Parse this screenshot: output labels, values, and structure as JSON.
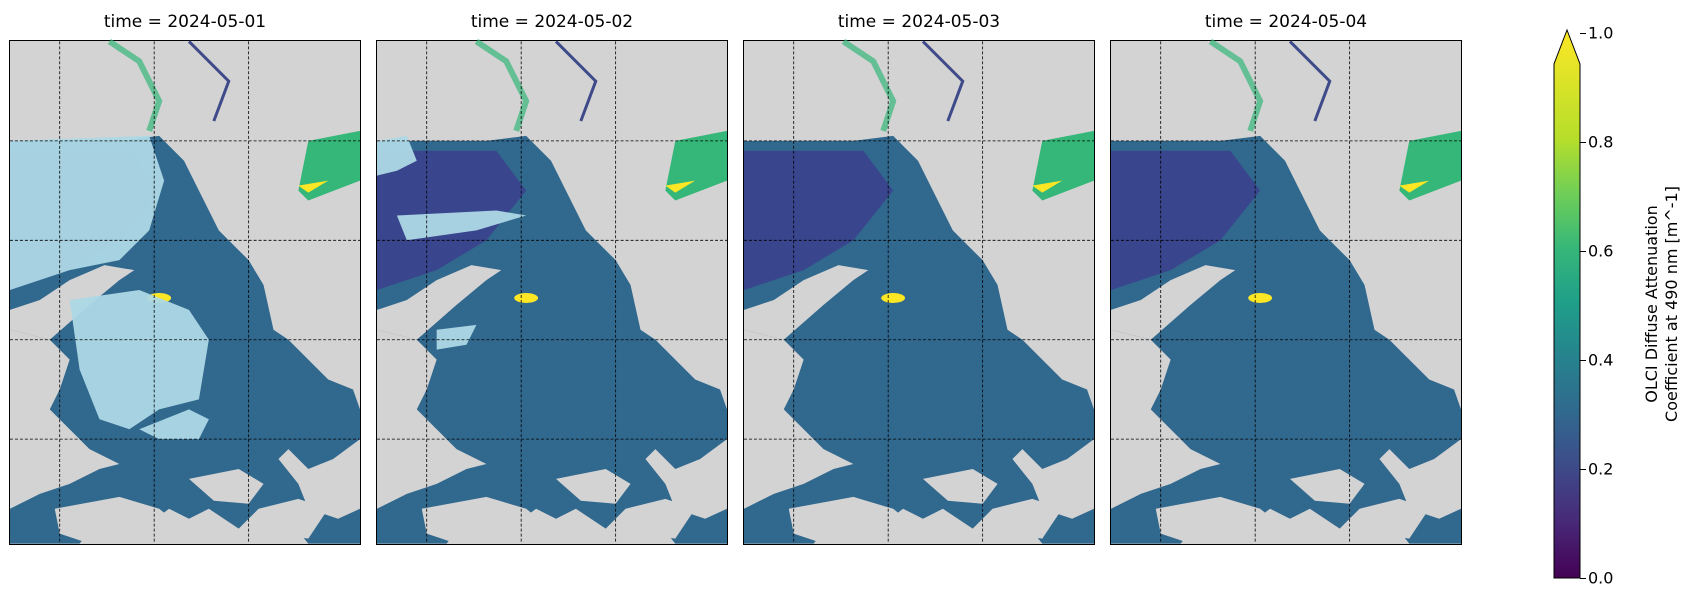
{
  "panels": [
    {
      "title": "time = 2024-05-01",
      "clouds": true
    },
    {
      "title": "time = 2024-05-02",
      "clouds": true
    },
    {
      "title": "time = 2024-05-03",
      "clouds": false
    },
    {
      "title": "time = 2024-05-04",
      "clouds": false
    }
  ],
  "colorbar": {
    "label_line1": "OLCI Diffuse Attenuation",
    "label_line2": "Coefficient at 490 nm [m^-1]",
    "ticks": [
      "0.0",
      "0.2",
      "0.4",
      "0.6",
      "0.8",
      "1.0"
    ],
    "range": [
      0.0,
      1.0
    ],
    "extend": "max",
    "colormap": "viridis"
  },
  "colors": {
    "land": "#d3d3d3",
    "cloud": "#add8e6",
    "water_dark": "#3b3f8c",
    "water_mid": "#31688e",
    "high": "#fde725"
  }
}
